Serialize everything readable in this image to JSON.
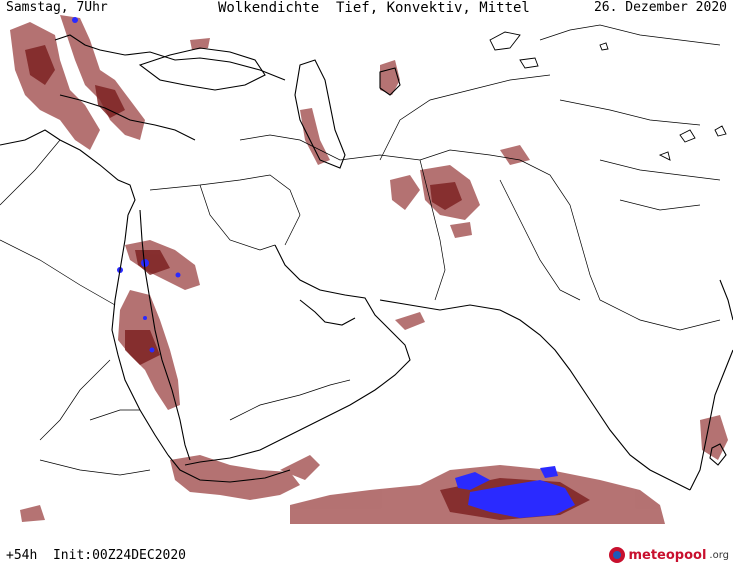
{
  "header": {
    "time_label": "Samstag, 7Uhr",
    "title": "Wolkendichte  Tief, Konvektiv, Mittel",
    "date_label": "26. Dezember 2020"
  },
  "footer": {
    "run_label": "+54h  Init:00Z24DEC2020",
    "logo_name": "meteopool",
    "logo_tld": ".org"
  },
  "legend_colors": {
    "low_density": "#b06a6a",
    "medium_density": "#8a2a2a",
    "high_density": "#2020ff",
    "coastline": "#000000",
    "border": "#000000"
  },
  "icons": {
    "logo": "meteopool-logo-icon"
  }
}
